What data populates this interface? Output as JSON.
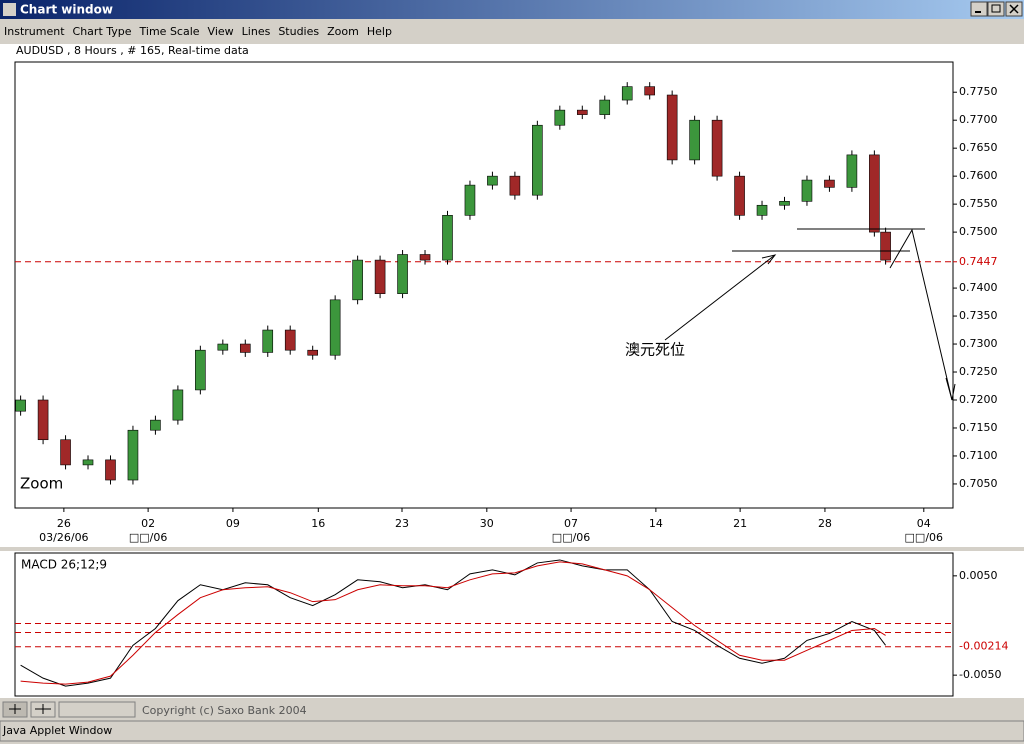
{
  "window": {
    "title": "Chart window",
    "menu": [
      "Instrument",
      "Chart Type",
      "Time Scale",
      "View",
      "Lines",
      "Studies",
      "Zoom",
      "Help"
    ],
    "copyright": "Copyright (c) Saxo Bank 2004",
    "status": "Java Applet Window"
  },
  "chart_data": [
    {
      "type": "candlestick",
      "title": "AUDUSD , 8 Hours , # 165, Real-time data",
      "annotation": "澳元死位",
      "zoom_label": "Zoom",
      "up_color": "#3c963c",
      "down_color": "#a02828",
      "x": [
        1,
        5,
        9,
        13,
        17,
        21,
        25,
        29,
        33,
        37,
        41,
        45,
        49,
        53,
        57,
        61,
        65,
        69,
        73,
        77,
        81,
        85,
        89,
        93,
        97,
        101,
        105,
        109,
        113,
        117,
        121,
        125,
        129,
        133,
        137,
        141,
        145,
        149,
        153,
        155
      ],
      "open": [
        0.718,
        0.72,
        0.7129,
        0.7084,
        0.7093,
        0.7057,
        0.7146,
        0.7164,
        0.7218,
        0.7289,
        0.73,
        0.7285,
        0.7325,
        0.7289,
        0.728,
        0.7379,
        0.745,
        0.739,
        0.746,
        0.745,
        0.753,
        0.7584,
        0.76,
        0.7566,
        0.7691,
        0.7718,
        0.771,
        0.7736,
        0.776,
        0.7745,
        0.7629,
        0.77,
        0.76,
        0.753,
        0.7548,
        0.7555,
        0.7593,
        0.758,
        0.7638,
        0.75
      ],
      "high": [
        0.7208,
        0.7208,
        0.7137,
        0.7101,
        0.7101,
        0.7154,
        0.7172,
        0.7226,
        0.7297,
        0.7308,
        0.7308,
        0.7333,
        0.7333,
        0.7297,
        0.7387,
        0.7458,
        0.7458,
        0.7468,
        0.7468,
        0.7538,
        0.7592,
        0.7608,
        0.7608,
        0.7699,
        0.7726,
        0.7726,
        0.7744,
        0.7768,
        0.7768,
        0.7753,
        0.7708,
        0.7708,
        0.7608,
        0.7556,
        0.7563,
        0.7601,
        0.7601,
        0.7646,
        0.7646,
        0.7508
      ],
      "low": [
        0.7172,
        0.7121,
        0.7076,
        0.7076,
        0.7049,
        0.7049,
        0.7138,
        0.7156,
        0.721,
        0.7281,
        0.7277,
        0.7277,
        0.7281,
        0.7272,
        0.7272,
        0.7371,
        0.7382,
        0.7382,
        0.7442,
        0.7442,
        0.7522,
        0.7576,
        0.7558,
        0.7558,
        0.7683,
        0.7702,
        0.7702,
        0.7728,
        0.7737,
        0.7621,
        0.7621,
        0.7592,
        0.7522,
        0.7522,
        0.754,
        0.7547,
        0.7572,
        0.7572,
        0.7492,
        0.7442
      ],
      "close": [
        0.72,
        0.7129,
        0.7084,
        0.7093,
        0.7057,
        0.7146,
        0.7164,
        0.7218,
        0.7289,
        0.73,
        0.7285,
        0.7325,
        0.7289,
        0.728,
        0.7379,
        0.745,
        0.739,
        0.746,
        0.745,
        0.753,
        0.7584,
        0.76,
        0.7566,
        0.7691,
        0.7718,
        0.771,
        0.7736,
        0.776,
        0.7745,
        0.7629,
        0.77,
        0.76,
        0.753,
        0.7548,
        0.7555,
        0.7593,
        0.758,
        0.7638,
        0.75,
        0.745
      ],
      "xlim": [
        0,
        167
      ],
      "ylim": [
        0.7007,
        0.7804
      ],
      "xticks": [
        {
          "value": 8.7,
          "label": "26"
        },
        {
          "value": 23.7,
          "label": "02"
        },
        {
          "value": 38.8,
          "label": "09"
        },
        {
          "value": 54.0,
          "label": "16"
        },
        {
          "value": 68.9,
          "label": "23"
        },
        {
          "value": 84.0,
          "label": "30"
        },
        {
          "value": 99.0,
          "label": "07"
        },
        {
          "value": 114.1,
          "label": "14"
        },
        {
          "value": 129.1,
          "label": "21"
        },
        {
          "value": 144.2,
          "label": "28"
        },
        {
          "value": 161.8,
          "label": "04"
        }
      ],
      "xsublabels": [
        {
          "value": 8.7,
          "label": "03/26/06"
        },
        {
          "value": 23.7,
          "label": "□□/06"
        },
        {
          "value": 99.0,
          "label": "□□/06"
        },
        {
          "value": 161.8,
          "label": "□□/06"
        }
      ],
      "yticks": [
        {
          "value": 0.775,
          "label": "0.7750"
        },
        {
          "value": 0.77,
          "label": "0.7700"
        },
        {
          "value": 0.765,
          "label": "0.7650"
        },
        {
          "value": 0.76,
          "label": "0.7600"
        },
        {
          "value": 0.755,
          "label": "0.7550"
        },
        {
          "value": 0.75,
          "label": "0.7500"
        },
        {
          "value": 0.74,
          "label": "0.7400"
        },
        {
          "value": 0.735,
          "label": "0.7350"
        },
        {
          "value": 0.73,
          "label": "0.7300"
        },
        {
          "value": 0.725,
          "label": "0.7250"
        },
        {
          "value": 0.72,
          "label": "0.7200"
        },
        {
          "value": 0.715,
          "label": "0.7150"
        },
        {
          "value": 0.71,
          "label": "0.7100"
        },
        {
          "value": 0.705,
          "label": "0.7050"
        }
      ],
      "reference_line": {
        "value": 0.7447,
        "label": "0.7447",
        "color": "#cc0000"
      }
    },
    {
      "type": "line",
      "title": "MACD 26;12;9",
      "x": [
        1,
        5,
        9,
        13,
        17,
        21,
        25,
        29,
        33,
        37,
        41,
        45,
        49,
        53,
        57,
        61,
        65,
        69,
        73,
        77,
        81,
        85,
        89,
        93,
        97,
        101,
        105,
        109,
        113,
        117,
        121,
        125,
        129,
        133,
        137,
        141,
        145,
        149,
        153,
        155
      ],
      "series": [
        {
          "color": "#000000",
          "values": [
            -0.004,
            -0.0053,
            -0.0061,
            -0.0058,
            -0.0053,
            -0.002,
            -0.0003,
            0.0025,
            0.0041,
            0.0036,
            0.0043,
            0.0041,
            0.0028,
            0.002,
            0.0031,
            0.0046,
            0.0044,
            0.0038,
            0.0041,
            0.0036,
            0.0052,
            0.0056,
            0.0051,
            0.0063,
            0.0066,
            0.006,
            0.0056,
            0.0056,
            0.0036,
            0.0004,
            -0.0005,
            -0.002,
            -0.0033,
            -0.0038,
            -0.0033,
            -0.0015,
            -0.0008,
            0.0004,
            -0.0005,
            -0.002
          ]
        },
        {
          "color": "#cc0000",
          "values": [
            -0.0056,
            -0.0058,
            -0.0059,
            -0.0057,
            -0.0051,
            -0.003,
            -0.0007,
            0.0011,
            0.0028,
            0.0036,
            0.0038,
            0.0039,
            0.0033,
            0.0024,
            0.0026,
            0.0036,
            0.0041,
            0.004,
            0.004,
            0.0038,
            0.0046,
            0.0052,
            0.0053,
            0.006,
            0.0064,
            0.0062,
            0.0056,
            0.005,
            0.0036,
            0.0018,
            0.0,
            -0.0015,
            -0.003,
            -0.0035,
            -0.0035,
            -0.0025,
            -0.0015,
            -0.0005,
            -0.0003,
            -0.001
          ]
        }
      ],
      "xlim": [
        0,
        167
      ],
      "ylim": [
        -0.0071,
        0.0073
      ],
      "yticks": [
        {
          "value": 0.005,
          "label": "0.0050"
        },
        {
          "value": -0.005,
          "label": "-0.0050"
        }
      ],
      "levels": [
        0.0002,
        -0.0007,
        {
          "value": -0.00214,
          "label": "-0.00214"
        }
      ],
      "level_color": "#cc0000"
    }
  ]
}
